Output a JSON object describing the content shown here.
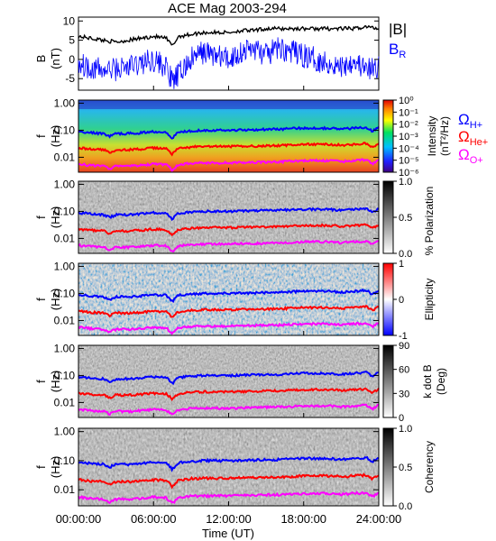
{
  "figure": {
    "title": "ACE Mag 2003-294",
    "xlabel": "Time (UT)",
    "xticks": [
      "00:00:00",
      "06:00:00",
      "12:00:00",
      "18:00:00",
      "24:00:00"
    ]
  },
  "colors": {
    "B_mag": "#000000",
    "B_R": "#0000ff",
    "H_plus": "#0000ff",
    "He_plus": "#ff0000",
    "O_plus": "#ff00ff"
  },
  "legend_B": {
    "B_mag": "|B|",
    "B_R": "B",
    "B_R_sub": "R"
  },
  "legend_omega": {
    "H": {
      "sym": "Ω",
      "sub": "H+"
    },
    "He": {
      "sym": "Ω",
      "sub": "He+"
    },
    "O": {
      "sym": "Ω",
      "sub": "O+"
    }
  },
  "chart_data": [
    {
      "type": "line",
      "panel": "B",
      "ylabel": "B",
      "ylabel_unit": "(nT)",
      "ylim": [
        -8,
        11
      ],
      "yticks": [
        "10",
        "5",
        "0",
        "-5"
      ],
      "x_hours": [
        0,
        1,
        2,
        3,
        4,
        5,
        6,
        7,
        7.5,
        8,
        9,
        10,
        11,
        12,
        13,
        14,
        15,
        16,
        17,
        18,
        19,
        20,
        21,
        22,
        23,
        24
      ],
      "series": [
        {
          "name": "|B|",
          "values": [
            6,
            5.5,
            5,
            4.5,
            5,
            5.5,
            6,
            5.5,
            3.5,
            6,
            6.5,
            7,
            7,
            7,
            7.5,
            7.5,
            8,
            8,
            8,
            8,
            8,
            8,
            8,
            8,
            8.5,
            8
          ]
        },
        {
          "name": "B_R",
          "values": [
            -1,
            -2,
            -3,
            -2.5,
            -2,
            -1,
            0,
            -2,
            -6,
            -4,
            0,
            2,
            1,
            0,
            2,
            3,
            1,
            3,
            2,
            1,
            0,
            -1,
            -2,
            0,
            -3,
            -2
          ]
        }
      ]
    },
    {
      "type": "heatmap",
      "panel": "intensity",
      "ylabel": "f",
      "ylabel_unit": "(Hz)",
      "yticks": [
        "1.00",
        "0.10",
        "0.01"
      ],
      "colorbar_label": "Intensity",
      "colorbar_unit": "(nT²/Hz)",
      "colorbar_ticks": [
        "10⁰",
        "10⁻¹",
        "10⁻²",
        "10⁻³",
        "10⁻⁴",
        "10⁻⁵",
        "10⁻⁶"
      ],
      "colorbar_range": [
        -6,
        0
      ]
    },
    {
      "type": "heatmap",
      "panel": "polarization",
      "ylabel": "f",
      "ylabel_unit": "(Hz)",
      "yticks": [
        "1.00",
        "0.10",
        "0.01"
      ],
      "colorbar_label": "% Polarization",
      "colorbar_ticks": [
        "1.0",
        "0.5",
        "0.0"
      ],
      "colorbar_range": [
        0,
        1
      ]
    },
    {
      "type": "heatmap",
      "panel": "ellipticity",
      "ylabel": "f",
      "ylabel_unit": "(Hz)",
      "yticks": [
        "1.00",
        "0.10",
        "0.01"
      ],
      "colorbar_label": "Ellipticity",
      "colorbar_ticks": [
        "1",
        "0",
        "-1"
      ],
      "colorbar_range": [
        -1,
        1
      ]
    },
    {
      "type": "heatmap",
      "panel": "kdotB",
      "ylabel": "f",
      "ylabel_unit": "(Hz)",
      "yticks": [
        "1.00",
        "0.10",
        "0.01"
      ],
      "colorbar_label": "k dot B",
      "colorbar_unit": "(Deg)",
      "colorbar_ticks": [
        "90",
        "60",
        "30",
        "0"
      ],
      "colorbar_range": [
        0,
        90
      ]
    },
    {
      "type": "heatmap",
      "panel": "coherency",
      "ylabel": "f",
      "ylabel_unit": "(Hz)",
      "yticks": [
        "1.00",
        "0.10",
        "0.01"
      ],
      "colorbar_label": "Coherency",
      "colorbar_ticks": [
        "1.0",
        "0.5",
        "0.0"
      ],
      "colorbar_range": [
        0,
        1
      ]
    }
  ],
  "gyrofrequency_lines": {
    "x_hours": [
      0,
      1,
      2,
      2.5,
      3,
      4,
      5,
      6,
      7,
      7.5,
      8,
      9,
      10,
      12,
      14,
      16,
      18,
      20,
      21,
      22,
      23,
      23.5,
      24
    ],
    "H_plus_Hz": [
      0.09,
      0.08,
      0.075,
      0.06,
      0.075,
      0.075,
      0.08,
      0.09,
      0.085,
      0.05,
      0.085,
      0.095,
      0.1,
      0.1,
      0.105,
      0.11,
      0.12,
      0.12,
      0.11,
      0.12,
      0.13,
      0.09,
      0.13
    ],
    "He_plus_Hz": [
      0.022,
      0.02,
      0.019,
      0.015,
      0.019,
      0.019,
      0.02,
      0.022,
      0.021,
      0.013,
      0.021,
      0.024,
      0.025,
      0.025,
      0.026,
      0.027,
      0.03,
      0.03,
      0.028,
      0.03,
      0.032,
      0.023,
      0.032
    ],
    "O_plus_Hz": [
      0.0056,
      0.005,
      0.0047,
      0.0038,
      0.0047,
      0.0047,
      0.005,
      0.0056,
      0.0053,
      0.0033,
      0.0053,
      0.006,
      0.0062,
      0.0062,
      0.0065,
      0.0068,
      0.0075,
      0.0075,
      0.007,
      0.0075,
      0.008,
      0.0058,
      0.008
    ]
  }
}
